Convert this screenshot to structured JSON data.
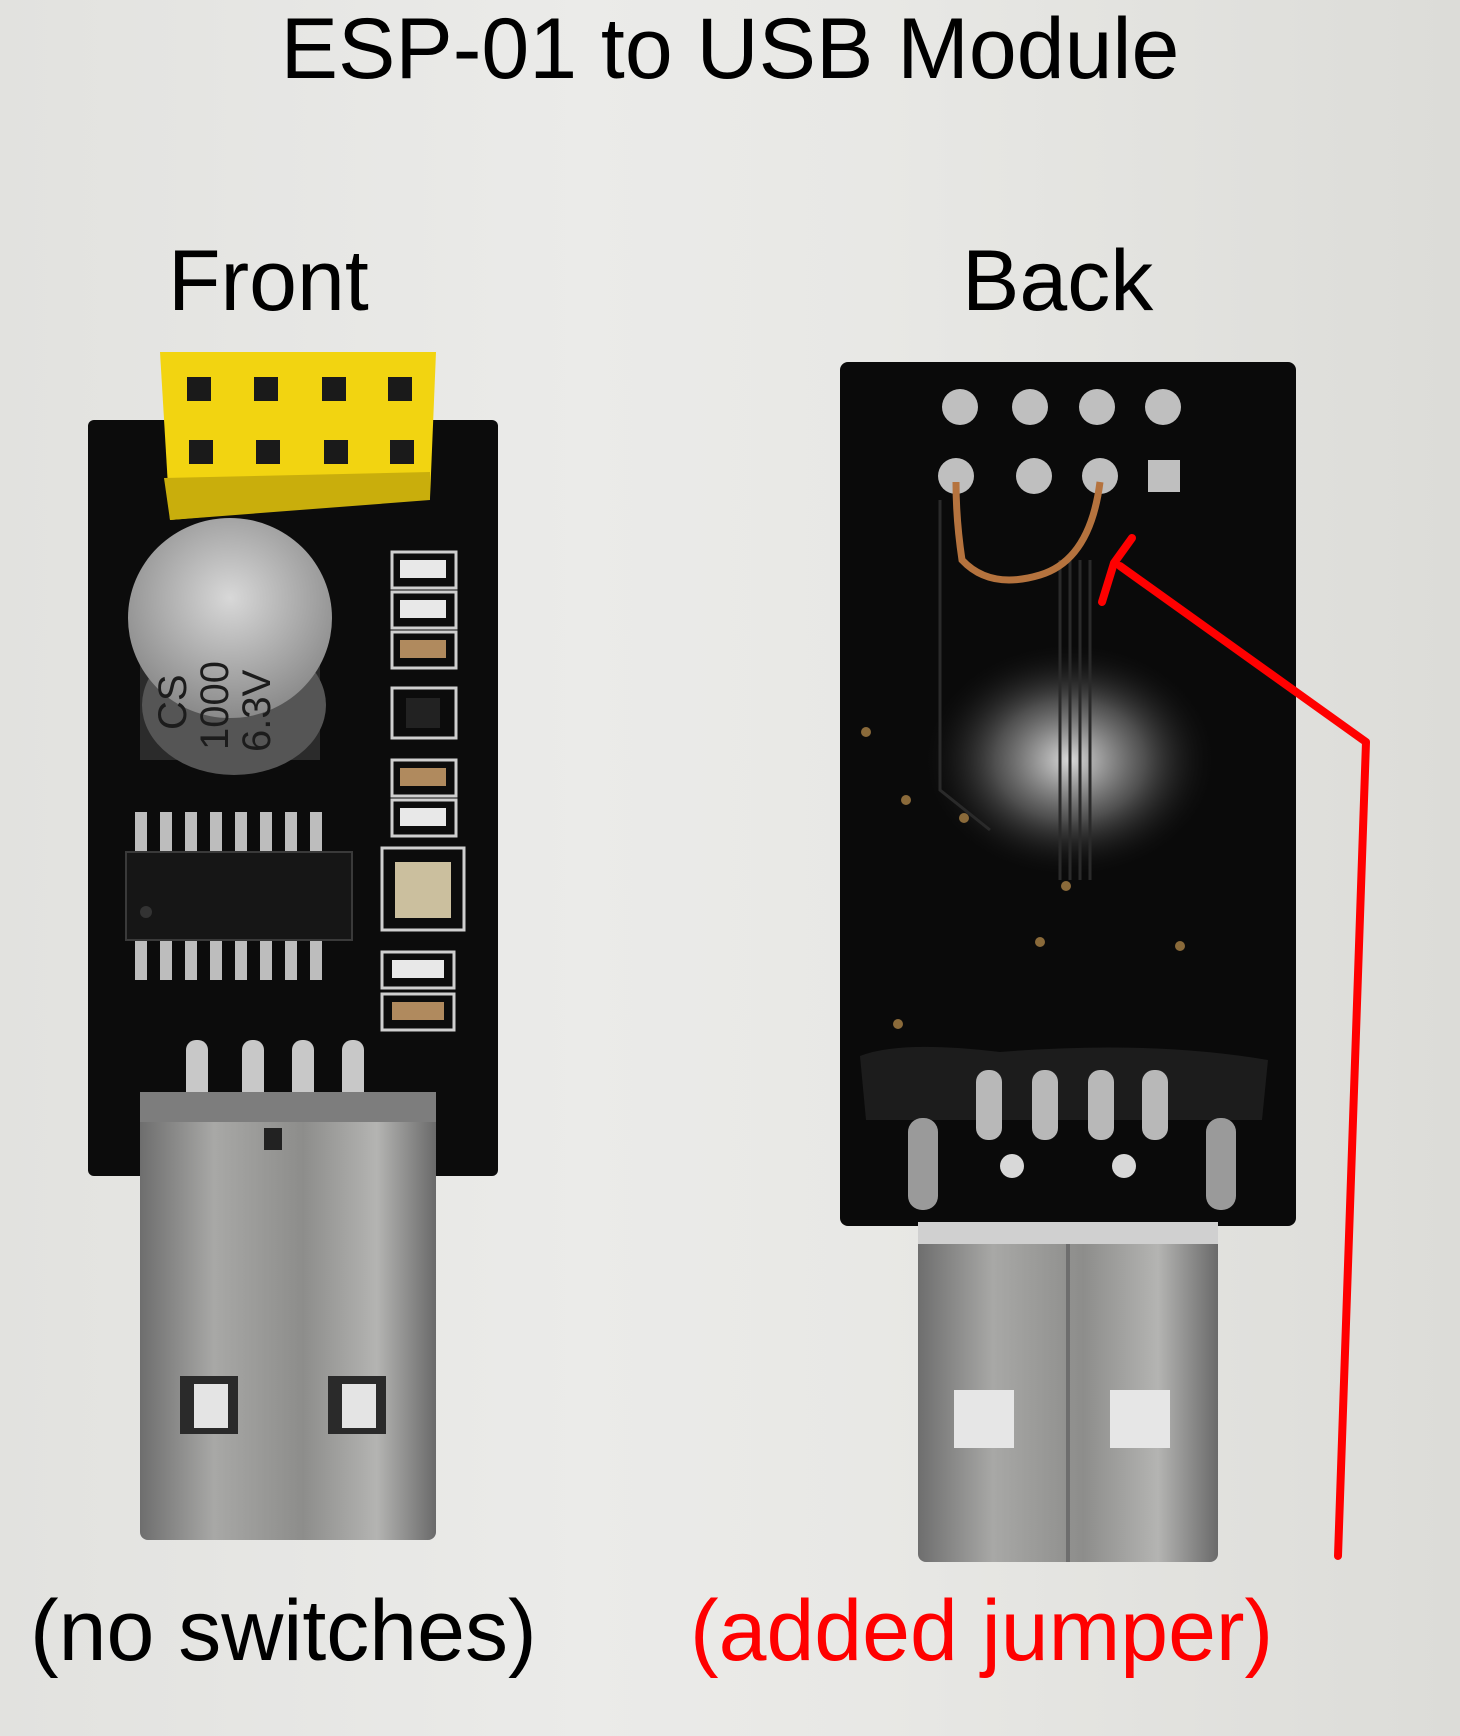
{
  "title": "ESP-01 to USB Module",
  "front": {
    "label": "Front",
    "caption": "(no switches)",
    "capacitor_text": [
      "CS",
      "1000",
      "6.3V"
    ]
  },
  "back": {
    "label": "Back",
    "caption": "(added jumper)"
  },
  "colors": {
    "annotation": "#ff0000",
    "pcb": "#0d0d0d",
    "header": "#f5d915",
    "jumper_wire": "#b5733e",
    "usb_metal": "#9a9a9a"
  }
}
